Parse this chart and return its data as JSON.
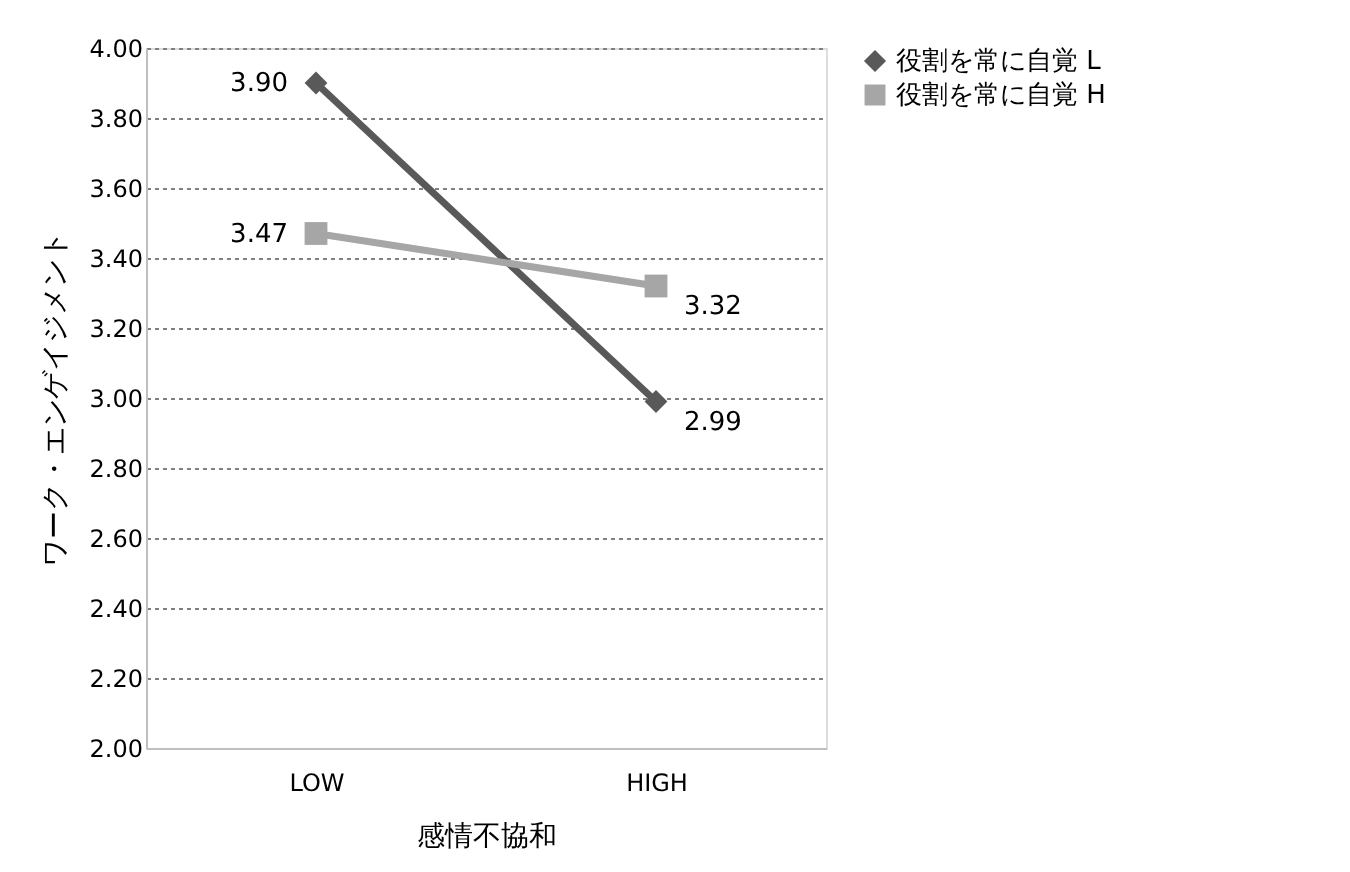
{
  "chart_data": {
    "type": "line",
    "xlabel": "感情不協和",
    "ylabel": "ワーク・エンゲイジメント",
    "categories": [
      "LOW",
      "HIGH"
    ],
    "series": [
      {
        "name": "役割を常に自覚 L",
        "color": "#595959",
        "marker": "diamond",
        "values": [
          3.9,
          2.99
        ],
        "value_labels": [
          "3.90",
          "2.99"
        ]
      },
      {
        "name": "役割を常に自覚 H",
        "color": "#a6a6a6",
        "marker": "square",
        "values": [
          3.47,
          3.32
        ],
        "value_labels": [
          "3.47",
          "3.32"
        ]
      }
    ],
    "ylim": [
      2,
      4
    ],
    "yticks": [
      {
        "value": 2,
        "label": "2.00"
      },
      {
        "value": 2.2,
        "label": "2.20"
      },
      {
        "value": 2.4,
        "label": "2.40"
      },
      {
        "value": 2.6,
        "label": "2.60"
      },
      {
        "value": 2.8,
        "label": "2.80"
      },
      {
        "value": 3,
        "label": "3.00"
      },
      {
        "value": 3.2,
        "label": "3.20"
      },
      {
        "value": 3.4,
        "label": "3.40"
      },
      {
        "value": 3.6,
        "label": "3.60"
      },
      {
        "value": 3.8,
        "label": "3.80"
      },
      {
        "value": 4,
        "label": "4.00"
      }
    ],
    "grid": "y",
    "legend": "right",
    "line_style": "solid"
  }
}
